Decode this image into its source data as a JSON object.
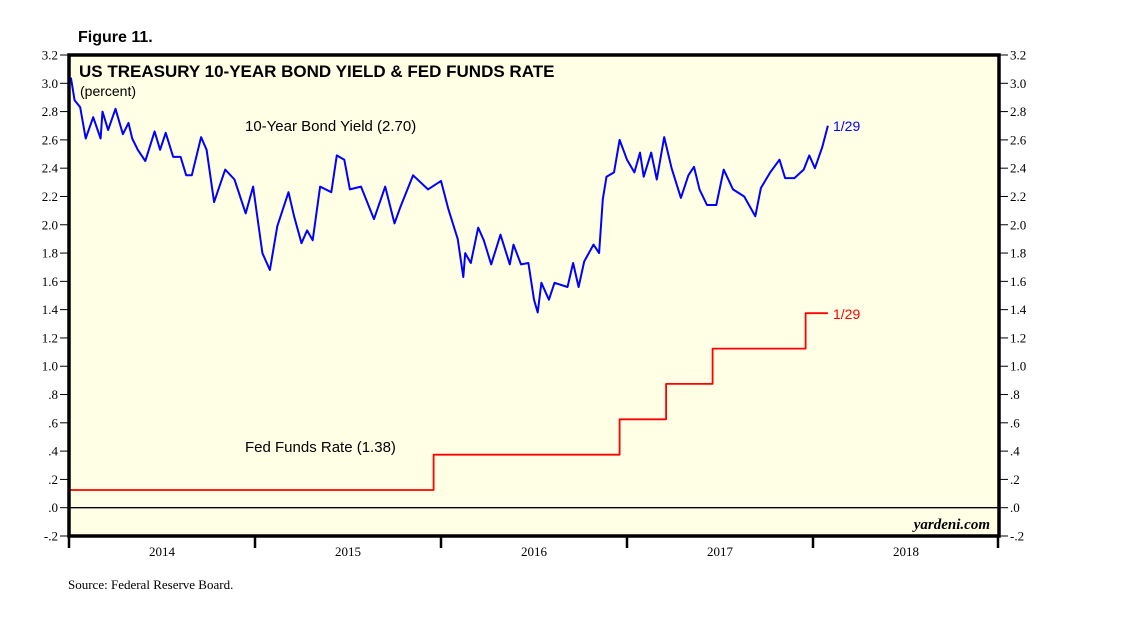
{
  "figure_label": "Figure 11.",
  "source": "Source: Federal Reserve Board.",
  "watermark": "yardeni.com",
  "chart_data": {
    "type": "line",
    "title": "US TREASURY 10-YEAR BOND YIELD & FED FUNDS RATE",
    "subtitle": "(percent)",
    "xlim": [
      2014.0,
      2019.0
    ],
    "ylim": [
      -0.2,
      3.2
    ],
    "x_tick_labels": [
      "2014",
      "2015",
      "2016",
      "2017",
      "2018"
    ],
    "y_tick_labels": [
      "3.2",
      "3.0",
      "2.8",
      "2.6",
      "2.4",
      "2.2",
      "2.0",
      "1.8",
      "1.6",
      "1.4",
      "1.2",
      "1.0",
      ".8",
      ".6",
      ".4",
      ".2",
      ".0",
      "-.2"
    ],
    "y_ticks": [
      3.2,
      3.0,
      2.8,
      2.6,
      2.4,
      2.2,
      2.0,
      1.8,
      1.6,
      1.4,
      1.2,
      1.0,
      0.8,
      0.6,
      0.4,
      0.2,
      0.0,
      -0.2
    ],
    "zero_line": true,
    "grid": false,
    "series": [
      {
        "name": "10-Year Bond Yield (2.70)",
        "end_label": "1/29",
        "color": "#0000ff",
        "x": [
          2014.01,
          2014.03,
          2014.06,
          2014.09,
          2014.13,
          2014.17,
          2014.18,
          2014.21,
          2014.25,
          2014.29,
          2014.32,
          2014.34,
          2014.37,
          2014.41,
          2014.46,
          2014.49,
          2014.52,
          2014.56,
          2014.6,
          2014.63,
          2014.66,
          2014.71,
          2014.74,
          2014.78,
          2014.84,
          2014.89,
          2014.95,
          2014.99,
          2015.04,
          2015.08,
          2015.12,
          2015.18,
          2015.21,
          2015.25,
          2015.28,
          2015.31,
          2015.35,
          2015.41,
          2015.44,
          2015.48,
          2015.51,
          2015.57,
          2015.64,
          2015.7,
          2015.75,
          2015.78,
          2015.85,
          2015.93,
          2016.0,
          2016.04,
          2016.09,
          2016.12,
          2016.13,
          2016.16,
          2016.2,
          2016.23,
          2016.27,
          2016.32,
          2016.37,
          2016.39,
          2016.43,
          2016.47,
          2016.5,
          2016.52,
          2016.54,
          2016.58,
          2016.61,
          2016.68,
          2016.71,
          2016.74,
          2016.77,
          2016.82,
          2016.85,
          2016.87,
          2016.89,
          2016.93,
          2016.96,
          2017.0,
          2017.04,
          2017.07,
          2017.09,
          2017.13,
          2017.16,
          2017.2,
          2017.24,
          2017.29,
          2017.33,
          2017.36,
          2017.39,
          2017.43,
          2017.48,
          2017.52,
          2017.57,
          2017.63,
          2017.69,
          2017.72,
          2017.77,
          2017.82,
          2017.85,
          2017.9,
          2017.95,
          2017.98,
          2018.01,
          2018.05,
          2018.08
        ],
        "values": [
          3.04,
          2.88,
          2.83,
          2.61,
          2.76,
          2.61,
          2.8,
          2.67,
          2.82,
          2.64,
          2.72,
          2.61,
          2.53,
          2.45,
          2.66,
          2.53,
          2.65,
          2.48,
          2.48,
          2.35,
          2.35,
          2.62,
          2.53,
          2.16,
          2.39,
          2.32,
          2.08,
          2.27,
          1.8,
          1.68,
          1.99,
          2.23,
          2.06,
          1.87,
          1.96,
          1.89,
          2.27,
          2.23,
          2.49,
          2.46,
          2.25,
          2.27,
          2.04,
          2.27,
          2.01,
          2.12,
          2.35,
          2.25,
          2.31,
          2.11,
          1.9,
          1.63,
          1.8,
          1.73,
          1.98,
          1.89,
          1.72,
          1.93,
          1.72,
          1.86,
          1.72,
          1.73,
          1.47,
          1.38,
          1.59,
          1.47,
          1.59,
          1.56,
          1.73,
          1.56,
          1.74,
          1.86,
          1.8,
          2.18,
          2.34,
          2.37,
          2.6,
          2.46,
          2.37,
          2.51,
          2.34,
          2.51,
          2.32,
          2.62,
          2.4,
          2.19,
          2.35,
          2.41,
          2.25,
          2.14,
          2.14,
          2.39,
          2.25,
          2.2,
          2.06,
          2.26,
          2.37,
          2.46,
          2.33,
          2.33,
          2.39,
          2.49,
          2.4,
          2.55,
          2.7
        ]
      },
      {
        "name": "Fed Funds Rate (1.38)",
        "end_label": "1/29",
        "color": "#ff0000",
        "step": true,
        "x": [
          2014.0,
          2015.96,
          2016.96,
          2017.21,
          2017.46,
          2017.96,
          2018.08
        ],
        "values": [
          0.125,
          0.375,
          0.625,
          0.875,
          1.125,
          1.375,
          1.375
        ]
      }
    ]
  }
}
